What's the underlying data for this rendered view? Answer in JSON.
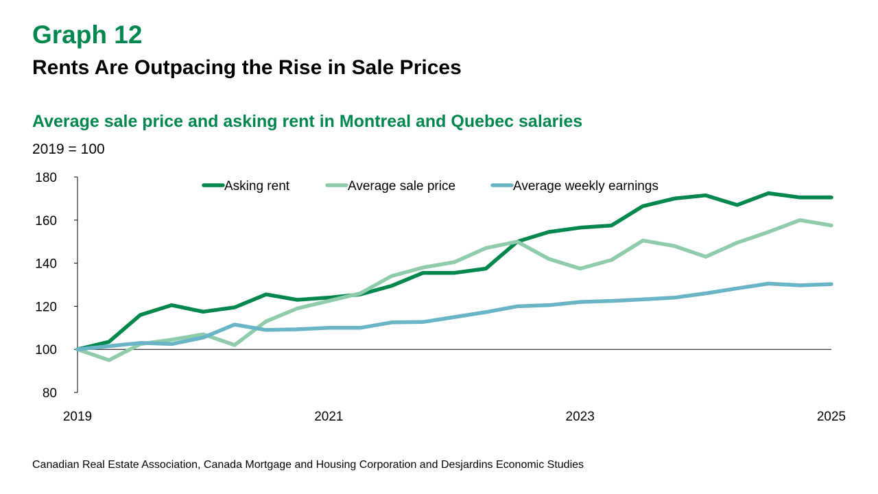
{
  "header": {
    "title": "Graph 12",
    "subtitle": "Rents Are Outpacing the Rise in Sale Prices"
  },
  "chart_heading": "Average sale price and asking rent in Montreal and Quebec salaries",
  "unit_label": "2019 = 100",
  "source": "Canadian Real Estate Association, Canada Mortgage and Housing Corporation and Desjardins Economic Studies",
  "chart_data": {
    "type": "line",
    "title": "Average sale price and asking rent in Montreal and Quebec salaries",
    "ylabel": "2019 = 100",
    "xlabel": "",
    "ylim": [
      80,
      180
    ],
    "yticks": [
      80,
      100,
      120,
      140,
      160,
      180
    ],
    "xlim": [
      2019,
      2025
    ],
    "xticks": [
      2019,
      2021,
      2023,
      2025
    ],
    "grid": false,
    "legend_position": "top",
    "x": [
      2019.0,
      2019.25,
      2019.5,
      2019.75,
      2020.0,
      2020.25,
      2020.5,
      2020.75,
      2021.0,
      2021.25,
      2021.5,
      2021.75,
      2022.0,
      2022.25,
      2022.5,
      2022.75,
      2023.0,
      2023.25,
      2023.5,
      2023.75,
      2024.0,
      2024.25,
      2024.5,
      2024.75,
      2025.0
    ],
    "series": [
      {
        "name": "Asking rent",
        "color": "#00874d",
        "values": [
          100,
          103.5,
          116,
          120.5,
          117.5,
          119.5,
          125.5,
          123,
          124,
          125.5,
          129.5,
          135.5,
          135.5,
          137.5,
          150,
          154.5,
          156.5,
          157.5,
          166.5,
          170,
          171.5,
          167,
          172.5,
          170.5,
          170.5
        ]
      },
      {
        "name": "Average sale price",
        "color": "#8fccaa",
        "values": [
          100,
          95,
          102.5,
          104.5,
          107,
          102,
          113,
          119,
          122.5,
          126,
          134,
          138,
          140.5,
          147,
          150,
          142,
          137.5,
          141.5,
          150.5,
          148,
          143,
          149.5,
          154.5,
          160,
          157.5
        ]
      },
      {
        "name": "Average weekly earnings",
        "color": "#6ab4c8",
        "values": [
          100,
          101.5,
          103,
          102.5,
          105.5,
          111.5,
          109,
          109.3,
          110,
          110,
          112.5,
          112.7,
          115,
          117.3,
          120,
          120.5,
          122,
          122.5,
          123.2,
          124,
          126,
          128.3,
          130.5,
          129.7,
          130.3
        ]
      }
    ]
  }
}
